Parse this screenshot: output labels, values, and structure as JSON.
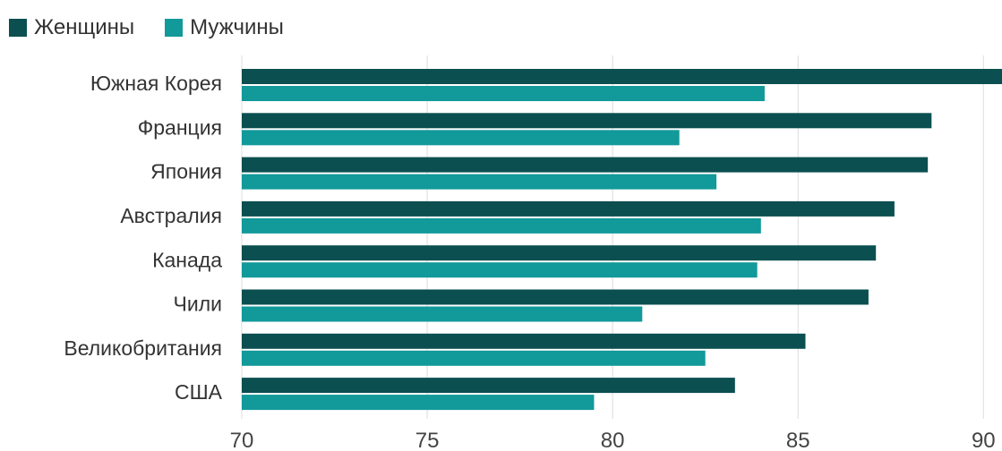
{
  "chart_data": {
    "type": "bar",
    "orientation": "horizontal",
    "categories": [
      "Южная Корея",
      "Франция",
      "Япония",
      "Австралия",
      "Канада",
      "Чили",
      "Великобритания",
      "США"
    ],
    "series": [
      {
        "name": "Женщины",
        "color": "#0b4f50",
        "values": [
          90.8,
          88.6,
          88.5,
          87.6,
          87.1,
          86.9,
          85.2,
          83.3
        ]
      },
      {
        "name": "Мужчины",
        "color": "#12999a",
        "values": [
          84.1,
          81.8,
          82.8,
          84.0,
          83.9,
          80.8,
          82.5,
          79.5
        ]
      }
    ],
    "xlim": [
      70,
      90.5
    ],
    "xticks": [
      70,
      75,
      80,
      85,
      90
    ],
    "grid": true,
    "legend_position": "top-left"
  }
}
